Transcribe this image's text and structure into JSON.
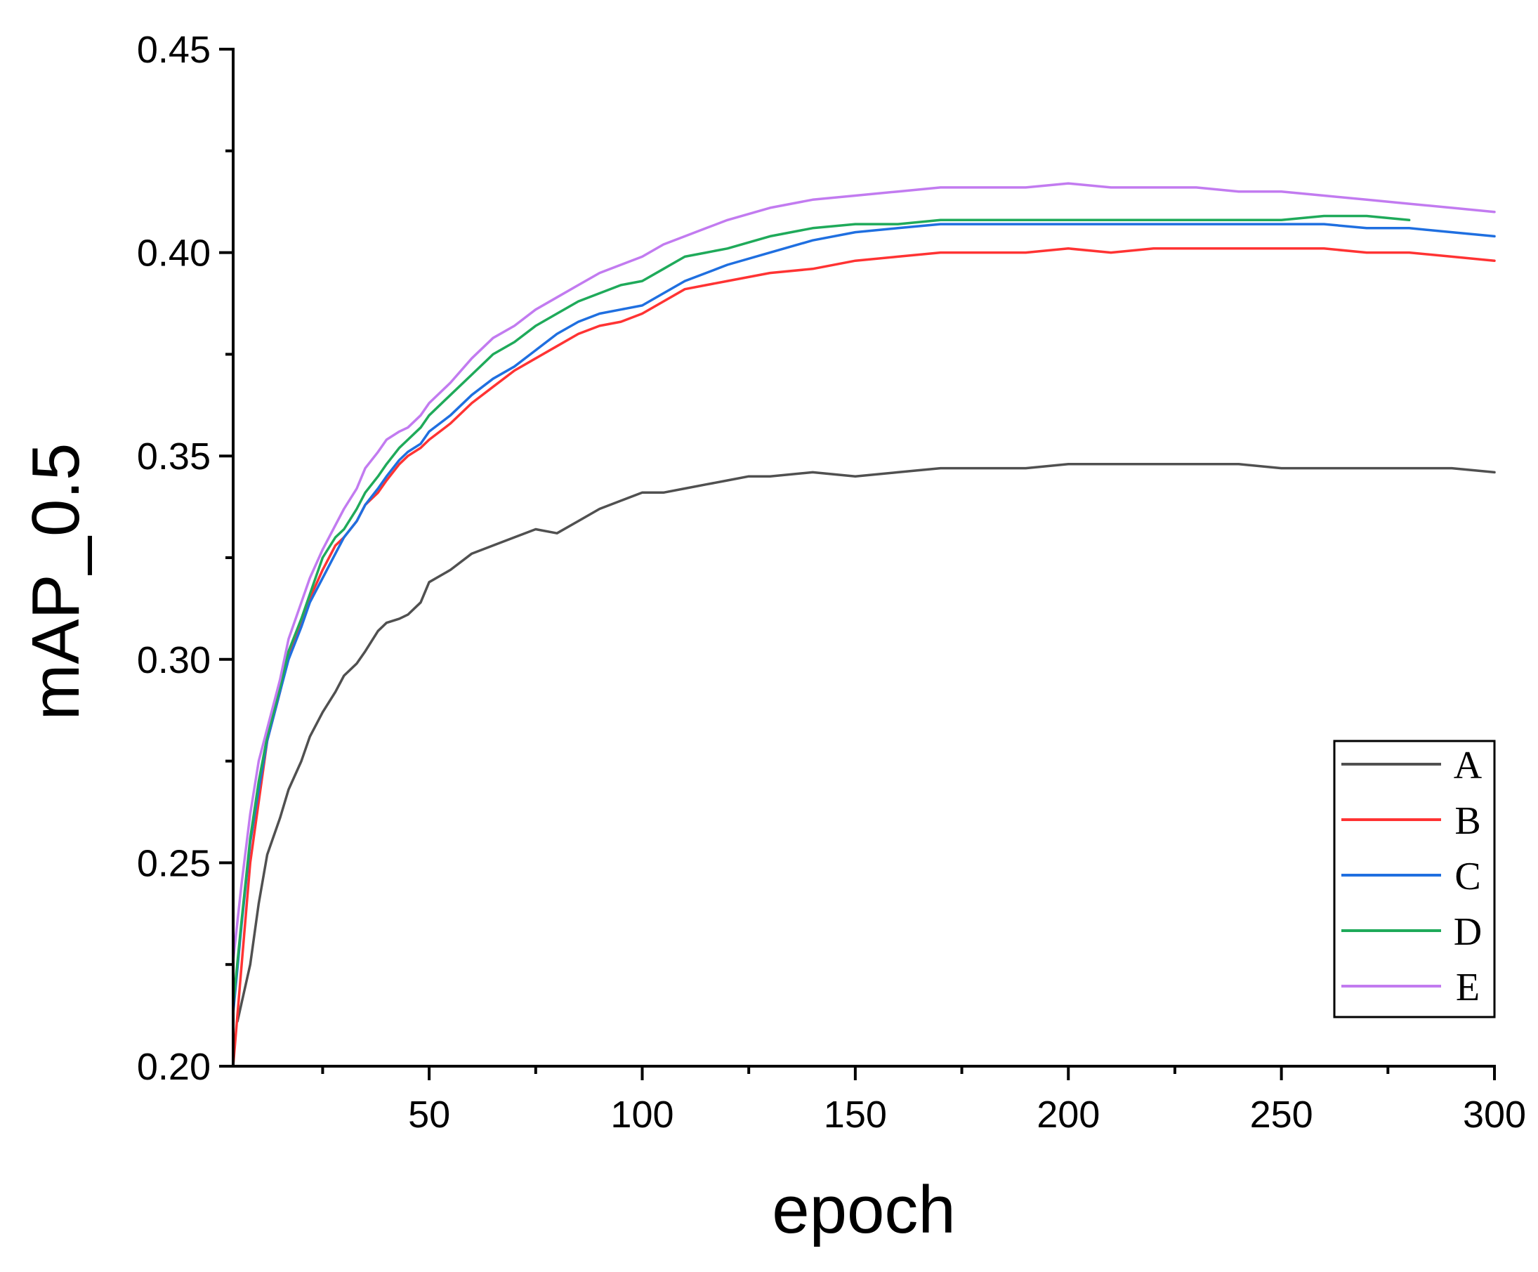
{
  "chart_data": {
    "type": "line",
    "title": "",
    "xlabel": "epoch",
    "ylabel": "mAP_0.5",
    "xlim": [
      4,
      300
    ],
    "ylim": [
      0.2,
      0.45
    ],
    "xticks": [
      50,
      100,
      150,
      200,
      250,
      300
    ],
    "xtick_labels": [
      "50",
      "100",
      "150",
      "200",
      "250",
      "300"
    ],
    "yticks": [
      0.2,
      0.25,
      0.3,
      0.35,
      0.4,
      0.45
    ],
    "ytick_labels": [
      "0.20",
      "0.25",
      "0.30",
      "0.35",
      "0.40",
      "0.45"
    ],
    "grid": false,
    "legend_position": "bottom-right",
    "series": [
      {
        "name": "A",
        "color": "#505050",
        "x": [
          5,
          8,
          10,
          12,
          15,
          17,
          20,
          22,
          25,
          28,
          30,
          33,
          35,
          38,
          40,
          43,
          45,
          48,
          50,
          55,
          60,
          65,
          70,
          75,
          80,
          85,
          90,
          95,
          100,
          105,
          110,
          115,
          120,
          125,
          130,
          140,
          150,
          160,
          170,
          180,
          190,
          200,
          210,
          220,
          230,
          240,
          250,
          260,
          270,
          280,
          290,
          300
        ],
        "y": [
          0.211,
          0.225,
          0.24,
          0.252,
          0.261,
          0.268,
          0.275,
          0.281,
          0.287,
          0.292,
          0.296,
          0.299,
          0.302,
          0.307,
          0.309,
          0.31,
          0.311,
          0.314,
          0.319,
          0.322,
          0.326,
          0.328,
          0.33,
          0.332,
          0.331,
          0.334,
          0.337,
          0.339,
          0.341,
          0.341,
          0.342,
          0.343,
          0.344,
          0.345,
          0.345,
          0.346,
          0.345,
          0.346,
          0.347,
          0.347,
          0.347,
          0.348,
          0.348,
          0.348,
          0.348,
          0.348,
          0.347,
          0.347,
          0.347,
          0.347,
          0.347,
          0.346
        ]
      },
      {
        "name": "B",
        "color": "#ff3333",
        "x": [
          4,
          6,
          8,
          10,
          12,
          15,
          17,
          20,
          22,
          25,
          28,
          30,
          33,
          35,
          38,
          40,
          43,
          45,
          48,
          50,
          55,
          60,
          65,
          70,
          75,
          80,
          85,
          90,
          95,
          100,
          105,
          110,
          115,
          120,
          130,
          140,
          150,
          160,
          170,
          180,
          190,
          200,
          210,
          220,
          230,
          240,
          250,
          260,
          270,
          280,
          290,
          300
        ],
        "y": [
          0.2,
          0.225,
          0.25,
          0.265,
          0.28,
          0.292,
          0.301,
          0.309,
          0.315,
          0.322,
          0.328,
          0.33,
          0.334,
          0.338,
          0.341,
          0.344,
          0.348,
          0.35,
          0.352,
          0.354,
          0.358,
          0.363,
          0.367,
          0.371,
          0.374,
          0.377,
          0.38,
          0.382,
          0.383,
          0.385,
          0.388,
          0.391,
          0.392,
          0.393,
          0.395,
          0.396,
          0.398,
          0.399,
          0.4,
          0.4,
          0.4,
          0.401,
          0.4,
          0.401,
          0.401,
          0.401,
          0.401,
          0.401,
          0.4,
          0.4,
          0.399,
          0.398
        ]
      },
      {
        "name": "C",
        "color": "#1f6fe0",
        "x": [
          4,
          6,
          8,
          10,
          12,
          15,
          17,
          20,
          22,
          25,
          28,
          30,
          33,
          35,
          38,
          40,
          43,
          45,
          48,
          50,
          55,
          60,
          65,
          70,
          75,
          80,
          85,
          90,
          95,
          100,
          105,
          110,
          115,
          120,
          130,
          140,
          150,
          160,
          170,
          180,
          190,
          200,
          210,
          220,
          230,
          240,
          250,
          260,
          270,
          280,
          290,
          300
        ],
        "y": [
          0.213,
          0.235,
          0.255,
          0.268,
          0.28,
          0.292,
          0.3,
          0.308,
          0.314,
          0.32,
          0.326,
          0.33,
          0.334,
          0.338,
          0.342,
          0.345,
          0.349,
          0.351,
          0.353,
          0.356,
          0.36,
          0.365,
          0.369,
          0.372,
          0.376,
          0.38,
          0.383,
          0.385,
          0.386,
          0.387,
          0.39,
          0.393,
          0.395,
          0.397,
          0.4,
          0.403,
          0.405,
          0.406,
          0.407,
          0.407,
          0.407,
          0.407,
          0.407,
          0.407,
          0.407,
          0.407,
          0.407,
          0.407,
          0.406,
          0.406,
          0.405,
          0.404
        ]
      },
      {
        "name": "D",
        "color": "#1faa5a",
        "x": [
          4,
          6,
          8,
          10,
          12,
          15,
          17,
          20,
          22,
          25,
          28,
          30,
          33,
          35,
          38,
          40,
          43,
          45,
          48,
          50,
          55,
          60,
          65,
          70,
          75,
          80,
          85,
          90,
          95,
          100,
          105,
          110,
          115,
          120,
          130,
          140,
          150,
          160,
          170,
          180,
          190,
          200,
          210,
          220,
          230,
          240,
          250,
          260,
          270,
          280
        ],
        "y": [
          0.215,
          0.236,
          0.256,
          0.27,
          0.281,
          0.293,
          0.302,
          0.31,
          0.316,
          0.325,
          0.33,
          0.332,
          0.337,
          0.341,
          0.345,
          0.348,
          0.352,
          0.354,
          0.357,
          0.36,
          0.365,
          0.37,
          0.375,
          0.378,
          0.382,
          0.385,
          0.388,
          0.39,
          0.392,
          0.393,
          0.396,
          0.399,
          0.4,
          0.401,
          0.404,
          0.406,
          0.407,
          0.407,
          0.408,
          0.408,
          0.408,
          0.408,
          0.408,
          0.408,
          0.408,
          0.408,
          0.408,
          0.409,
          0.409,
          0.408
        ]
      },
      {
        "name": "E",
        "color": "#c27bf0",
        "x": [
          4,
          6,
          8,
          10,
          12,
          15,
          17,
          20,
          22,
          25,
          28,
          30,
          33,
          35,
          38,
          40,
          43,
          45,
          48,
          50,
          55,
          60,
          65,
          70,
          75,
          80,
          85,
          90,
          95,
          100,
          105,
          110,
          115,
          120,
          130,
          140,
          150,
          160,
          170,
          180,
          190,
          200,
          210,
          220,
          230,
          240,
          250,
          260,
          270,
          280,
          290,
          300
        ],
        "y": [
          0.226,
          0.245,
          0.262,
          0.275,
          0.283,
          0.295,
          0.305,
          0.314,
          0.32,
          0.327,
          0.333,
          0.337,
          0.342,
          0.347,
          0.351,
          0.354,
          0.356,
          0.357,
          0.36,
          0.363,
          0.368,
          0.374,
          0.379,
          0.382,
          0.386,
          0.389,
          0.392,
          0.395,
          0.397,
          0.399,
          0.402,
          0.404,
          0.406,
          0.408,
          0.411,
          0.413,
          0.414,
          0.415,
          0.416,
          0.416,
          0.416,
          0.417,
          0.416,
          0.416,
          0.416,
          0.415,
          0.415,
          0.414,
          0.413,
          0.412,
          0.411,
          0.41
        ]
      }
    ]
  }
}
